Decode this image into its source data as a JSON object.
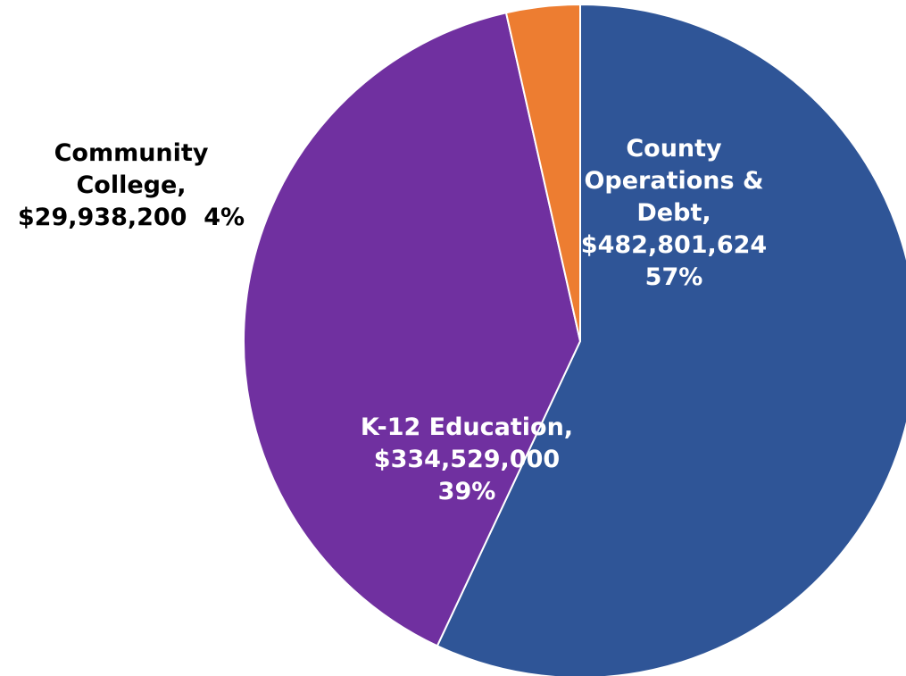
{
  "chart_data": {
    "type": "pie",
    "title": "",
    "start_angle_deg": 0,
    "direction": "clockwise",
    "slices": [
      {
        "name": "County Operations & Debt",
        "value": 482801624,
        "percent": 57,
        "color": "#2f5597",
        "label_lines": [
          "County",
          "Operations &",
          "Debt,",
          "$482,801,624",
          "57%"
        ],
        "label_placement": "inside"
      },
      {
        "name": "K-12 Education",
        "value": 334529000,
        "percent": 39,
        "color": "#7030a0",
        "label_lines": [
          "K-12 Education,",
          "$334,529,000",
          "39%"
        ],
        "label_placement": "inside"
      },
      {
        "name": "Community College",
        "value": 29938200,
        "percent": 4,
        "color": "#ed7d31",
        "label_lines": [
          "Community",
          "College,",
          "$29,938,200  4%"
        ],
        "label_placement": "outside"
      }
    ]
  }
}
